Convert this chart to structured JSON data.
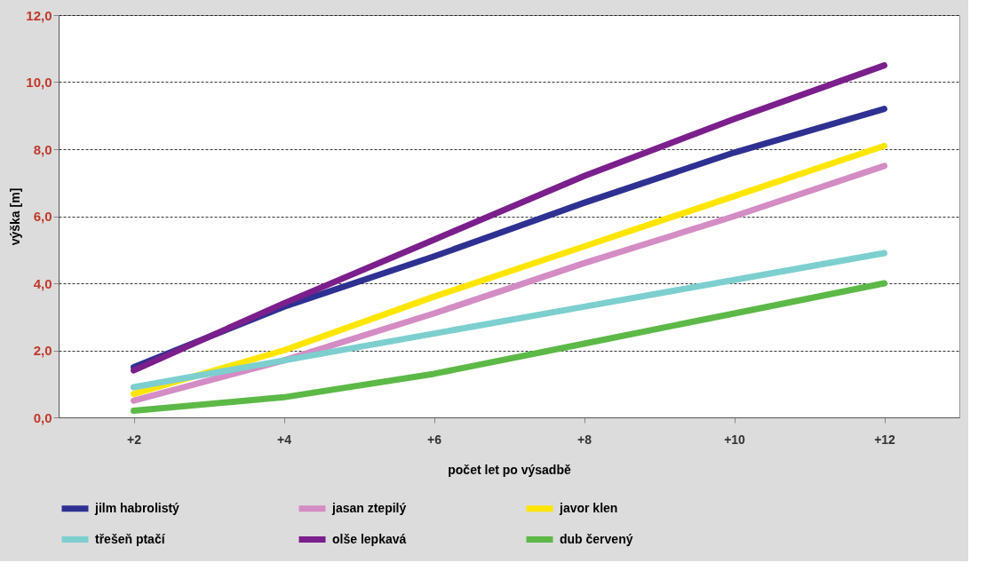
{
  "chart_data": {
    "type": "line",
    "xlabel": "počet let po výsadbě",
    "ylabel": "výška [m]",
    "categories": [
      "+2",
      "+4",
      "+6",
      "+8",
      "+10",
      "+12"
    ],
    "ylim": [
      0,
      12
    ],
    "yticks": [
      {
        "value": 0,
        "label": "0,0"
      },
      {
        "value": 2,
        "label": "2,0"
      },
      {
        "value": 4,
        "label": "4,0"
      },
      {
        "value": 6,
        "label": "6,0"
      },
      {
        "value": 8,
        "label": "8,0"
      },
      {
        "value": 10,
        "label": "10,0"
      },
      {
        "value": 12,
        "label": "12,0"
      }
    ],
    "grid": "y",
    "legend": "bottom",
    "marker": "none",
    "line_style": "solid",
    "series": [
      {
        "name": "jilm habrolistý",
        "color": "#2e3192",
        "values": [
          1.5,
          3.3,
          4.8,
          6.4,
          7.9,
          9.2
        ]
      },
      {
        "name": "jasan ztepilý",
        "color": "#d48cc4",
        "values": [
          0.5,
          1.7,
          3.1,
          4.6,
          6.0,
          7.5
        ]
      },
      {
        "name": "javor klen",
        "color": "#ffe600",
        "values": [
          0.7,
          2.0,
          3.6,
          5.1,
          6.6,
          8.1
        ]
      },
      {
        "name": "třešeň ptačí",
        "color": "#7dcfcf",
        "values": [
          0.9,
          1.7,
          2.5,
          3.3,
          4.1,
          4.9
        ]
      },
      {
        "name": "olše lepkavá",
        "color": "#7b1f8c",
        "values": [
          1.4,
          3.4,
          5.3,
          7.2,
          8.9,
          10.5
        ]
      },
      {
        "name": "dub červený",
        "color": "#5cb947",
        "values": [
          0.2,
          0.6,
          1.3,
          2.2,
          3.1,
          4.0
        ]
      }
    ]
  }
}
